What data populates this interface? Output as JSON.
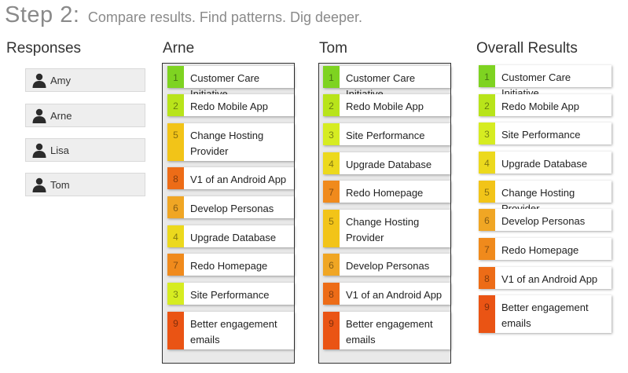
{
  "title": {
    "step": "Step 2:",
    "subtitle": "Compare results. Find patterns. Dig deeper."
  },
  "responses": {
    "heading": "Responses",
    "items": [
      {
        "name": "Amy",
        "icon": "person-icon"
      },
      {
        "name": "Arne",
        "icon": "person-icon"
      },
      {
        "name": "Lisa",
        "icon": "person-icon"
      },
      {
        "name": "Tom",
        "icon": "person-icon"
      }
    ]
  },
  "rank_colors": {
    "1": "#7ed321",
    "2": "#b8e41a",
    "3": "#d6ec21",
    "4": "#ecd91d",
    "5": "#f2c418",
    "6": "#f0a624",
    "7": "#f08a1c",
    "8": "#ed6c17",
    "9": "#ea5414"
  },
  "columns": [
    {
      "key": "arne",
      "heading": "Arne",
      "items": [
        {
          "num": "1",
          "label": "Customer Care Initiative"
        },
        {
          "num": "2",
          "label": "Redo Mobile App"
        },
        {
          "num": "5",
          "label": "Change Hosting Provider"
        },
        {
          "num": "8",
          "label": "V1 of an Android App"
        },
        {
          "num": "6",
          "label": "Develop Personas"
        },
        {
          "num": "4",
          "label": "Upgrade Database"
        },
        {
          "num": "7",
          "label": "Redo Homepage"
        },
        {
          "num": "3",
          "label": "Site Performance"
        },
        {
          "num": "9",
          "label": "Better engagement emails"
        }
      ]
    },
    {
      "key": "tom",
      "heading": "Tom",
      "items": [
        {
          "num": "1",
          "label": "Customer Care Initiative"
        },
        {
          "num": "2",
          "label": "Redo Mobile App"
        },
        {
          "num": "3",
          "label": "Site Performance"
        },
        {
          "num": "4",
          "label": "Upgrade Database"
        },
        {
          "num": "7",
          "label": "Redo Homepage"
        },
        {
          "num": "5",
          "label": "Change Hosting Provider"
        },
        {
          "num": "6",
          "label": "Develop Personas"
        },
        {
          "num": "8",
          "label": "V1 of an Android App"
        },
        {
          "num": "9",
          "label": "Better engagement emails"
        }
      ]
    },
    {
      "key": "overall",
      "heading": "Overall Results",
      "items": [
        {
          "num": "1",
          "label": "Customer Care Initiative"
        },
        {
          "num": "2",
          "label": "Redo Mobile App"
        },
        {
          "num": "3",
          "label": "Site Performance"
        },
        {
          "num": "4",
          "label": "Upgrade Database"
        },
        {
          "num": "5",
          "label": "Change Hosting Provider"
        },
        {
          "num": "6",
          "label": "Develop Personas"
        },
        {
          "num": "7",
          "label": "Redo Homepage"
        },
        {
          "num": "8",
          "label": "V1 of an Android App"
        },
        {
          "num": "9",
          "label": "Better engagement emails"
        }
      ]
    }
  ]
}
